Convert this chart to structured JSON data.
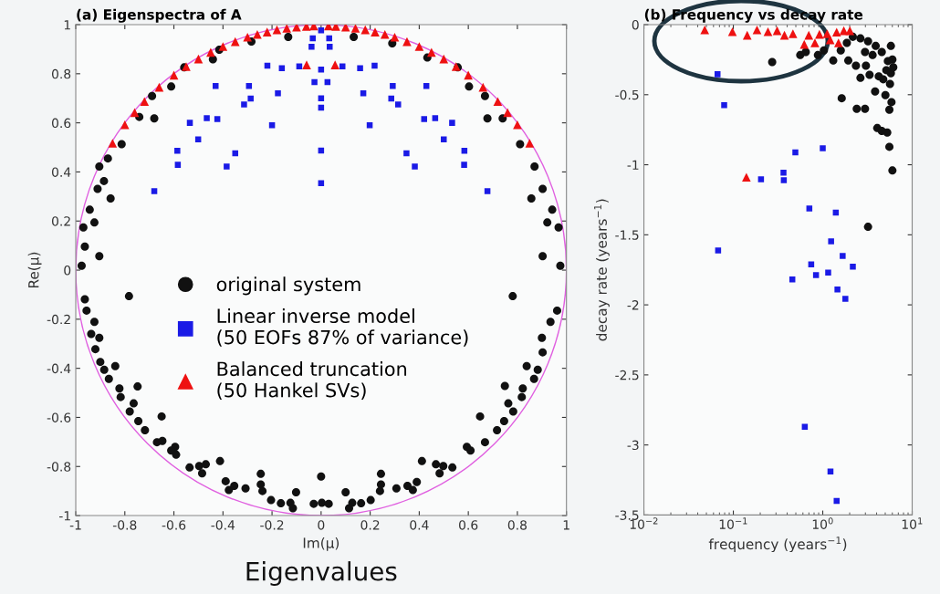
{
  "chart_data": [
    {
      "type": "scatter",
      "title": "(a) Eigenspectra of A",
      "xlabel": "Im(μ)",
      "ylabel": "Re(μ)",
      "xlim": [
        -1,
        1
      ],
      "ylim": [
        -1,
        1
      ],
      "xticks": [
        -1,
        -0.8,
        -0.6,
        -0.4,
        -0.2,
        0,
        0.2,
        0.4,
        0.6,
        0.8,
        1
      ],
      "yticks": [
        -1,
        -0.8,
        -0.6,
        -0.4,
        -0.2,
        0,
        0.2,
        0.4,
        0.6,
        0.8,
        1
      ],
      "grid": false,
      "legend": "center left",
      "annotations": [
        "Eigenvalues"
      ],
      "series": [
        {
          "name": "original system",
          "color": "#111111",
          "marker": "circle",
          "x": [
            -0.536,
            -0.497,
            -0.47,
            -0.485,
            -0.412,
            -0.389,
            -0.376,
            -0.354,
            -0.308,
            -0.246,
            -0.246,
            -0.239,
            -0.204,
            -0.164,
            -0.125,
            -0.115,
            -0.102,
            -0.03,
            0,
            0.003,
            0.031,
            0.1,
            0.114,
            0.127,
            0.163,
            0.202,
            0.244,
            0.244,
            0.24,
            0.307,
            0.352,
            0.374,
            0.39,
            0.411,
            0.468,
            0.498,
            0.483,
            0.535,
            -0.595,
            -0.611,
            -0.591,
            -0.669,
            -0.647,
            -0.65,
            -0.718,
            -0.745,
            -0.78,
            -0.764,
            -0.748,
            -0.817,
            -0.822,
            -0.865,
            -0.884,
            -0.839,
            -0.9,
            -0.92,
            -0.904,
            -0.937,
            -0.924,
            -0.956,
            -0.963,
            0.594,
            0.609,
            0.668,
            0.648,
            0.717,
            0.746,
            0.783,
            0.763,
            0.749,
            0.818,
            0.822,
            0.868,
            0.838,
            0.883,
            0.903,
            0.9,
            0.935,
            0.962,
            0.781,
            -0.783,
            -0.904,
            -0.969,
            -0.963,
            -0.976,
            -0.924,
            -0.858,
            -0.943,
            -0.911,
            -0.885,
            -0.904,
            -0.869,
            -0.813,
            -0.741,
            -0.68,
            -0.689,
            -0.611,
            -0.558,
            -0.441,
            -0.415,
            -0.284,
            -0.134,
            0.903,
            0.968,
            0.975,
            0.922,
            0.857,
            0.942,
            0.903,
            0.87,
            0.811,
            0.74,
            0.678,
            0.668,
            0.603,
            0.557,
            0.433,
            0.29,
            0.133
          ],
          "values": [
            -0.804,
            -0.798,
            -0.791,
            -0.828,
            -0.778,
            -0.86,
            -0.896,
            -0.879,
            -0.889,
            -0.83,
            -0.873,
            -0.9,
            -0.937,
            -0.95,
            -0.948,
            -0.97,
            -0.905,
            -0.952,
            -0.841,
            -0.948,
            -0.952,
            -0.905,
            -0.97,
            -0.948,
            -0.95,
            -0.937,
            -0.83,
            -0.873,
            -0.9,
            -0.889,
            -0.879,
            -0.896,
            -0.863,
            -0.778,
            -0.791,
            -0.798,
            -0.828,
            -0.804,
            -0.72,
            -0.735,
            -0.752,
            -0.701,
            -0.696,
            -0.596,
            -0.652,
            -0.615,
            -0.576,
            -0.543,
            -0.474,
            -0.517,
            -0.482,
            -0.443,
            -0.406,
            -0.391,
            -0.374,
            -0.322,
            -0.276,
            -0.26,
            -0.211,
            -0.165,
            -0.119,
            -0.72,
            -0.735,
            -0.701,
            -0.596,
            -0.652,
            -0.615,
            -0.576,
            -0.543,
            -0.472,
            -0.517,
            -0.482,
            -0.443,
            -0.391,
            -0.406,
            -0.335,
            -0.276,
            -0.211,
            -0.165,
            -0.106,
            -0.106,
            0.057,
            0.174,
            0.096,
            0.018,
            0.194,
            0.292,
            0.246,
            0.331,
            0.363,
            0.422,
            0.455,
            0.513,
            0.624,
            0.618,
            0.709,
            0.748,
            0.826,
            0.859,
            0.898,
            0.931,
            0.95,
            0.057,
            0.174,
            0.018,
            0.194,
            0.292,
            0.246,
            0.331,
            0.422,
            0.513,
            0.618,
            0.618,
            0.709,
            0.748,
            0.826,
            0.866,
            0.924,
            0.95
          ]
        },
        {
          "name": "Linear inverse model\n(50 EOFs 87% of variance)",
          "color": "#1a1ae6",
          "marker": "square",
          "x": [
            0,
            -0.034,
            0.033,
            -0.039,
            0.035,
            -0.219,
            -0.16,
            -0.089,
            0,
            0.087,
            0.159,
            0.218,
            -0.43,
            -0.294,
            -0.176,
            -0.027,
            0.026,
            0,
            0,
            -0.287,
            -0.314,
            0.172,
            0.292,
            0.429,
            0.286,
            0.314,
            -0.535,
            -0.466,
            -0.423,
            -0.2,
            0.198,
            0.42,
            0.465,
            0.534,
            -0.501,
            0.5,
            -0.586,
            -0.35,
            0,
            0.348,
            0.584,
            -0.584,
            -0.385,
            0.382,
            0.583,
            0,
            -0.68,
            0.678
          ],
          "values": [
            0.977,
            0.944,
            0.944,
            0.91,
            0.91,
            0.833,
            0.823,
            0.83,
            0.817,
            0.83,
            0.823,
            0.833,
            0.75,
            0.75,
            0.72,
            0.766,
            0.766,
            0.7,
            0.662,
            0.699,
            0.675,
            0.72,
            0.75,
            0.75,
            0.699,
            0.675,
            0.6,
            0.619,
            0.615,
            0.59,
            0.59,
            0.615,
            0.619,
            0.6,
            0.533,
            0.533,
            0.486,
            0.476,
            0.487,
            0.476,
            0.486,
            0.429,
            0.422,
            0.422,
            0.429,
            0.354,
            0.322,
            0.322
          ]
        },
        {
          "name": "Balanced truncation\n(50 Hankel SVs)",
          "color": "#ee1111",
          "marker": "triangle",
          "x": [
            -0.85,
            -0.8,
            -0.76,
            -0.72,
            -0.66,
            -0.6,
            -0.55,
            -0.5,
            -0.45,
            -0.4,
            -0.35,
            -0.3,
            -0.26,
            -0.22,
            -0.18,
            -0.14,
            -0.1,
            -0.06,
            -0.03,
            0.03,
            0.06,
            0.1,
            0.14,
            0.18,
            0.22,
            0.26,
            0.3,
            0.35,
            0.4,
            0.45,
            0.5,
            0.55,
            0.6,
            0.66,
            0.72,
            0.76,
            0.8,
            0.85,
            -0.059,
            0.057
          ],
          "values": [
            0.517,
            0.592,
            0.642,
            0.687,
            0.745,
            0.794,
            0.829,
            0.86,
            0.887,
            0.911,
            0.931,
            0.949,
            0.96,
            0.97,
            0.979,
            0.985,
            0.99,
            0.993,
            0.995,
            0.995,
            0.993,
            0.99,
            0.985,
            0.979,
            0.97,
            0.96,
            0.949,
            0.931,
            0.911,
            0.887,
            0.86,
            0.829,
            0.794,
            0.745,
            0.687,
            0.642,
            0.592,
            0.517,
            0.836,
            0.836
          ]
        }
      ]
    },
    {
      "type": "scatter",
      "title": "(b) Frequency vs decay rate",
      "xlabel": "frequency (years$^{−1}$)",
      "ylabel": "decay rate (years$^{−1}$)",
      "log": "x",
      "xlim": [
        0.01,
        10
      ],
      "ylim": [
        -3.5,
        0
      ],
      "xticks": [
        {
          "value": 0.01,
          "label": "10$^{−2}$"
        },
        {
          "value": 0.1,
          "label": "10$^{−1}$"
        },
        {
          "value": 1,
          "label": "10$^{0}$"
        },
        {
          "value": 10,
          "label": "10$^{1}$"
        }
      ],
      "yticks": [
        -3.5,
        -3,
        -2.5,
        -2,
        -1.5,
        -1,
        -0.5,
        0
      ],
      "grid": false,
      "series": [
        {
          "color": "#111111",
          "marker": "circle",
          "x": [
            0.272,
            0.56,
            0.883,
            1.31,
            1.63,
            1.93,
            2.35,
            2.64,
            3.04,
            2.4,
            2.97,
            3.85,
            3.34,
            3.21,
            4.07,
            4.57,
            5.26,
            5.56,
            6.01,
            5.56,
            5.87,
            5.02,
            5.65,
            5.78,
            5.78,
            6.01,
            4.23,
            4.57,
            3.91,
            3.21,
            2.64,
            2.17,
            1.86,
            1.59,
            5.14,
            6.15,
            4.75,
            5.35,
            3.61,
            2.97,
            0.646,
            1.03
          ],
          "values": [
            -0.267,
            -0.217,
            -0.217,
            -0.256,
            -0.525,
            -0.256,
            -0.293,
            -0.38,
            -0.293,
            -0.601,
            -0.601,
            -0.477,
            -0.358,
            -1.443,
            -0.738,
            -0.759,
            -0.77,
            -0.872,
            -1.041,
            -0.607,
            -0.553,
            -0.503,
            -0.423,
            -0.347,
            -0.152,
            -0.249,
            -0.369,
            -0.195,
            -0.152,
            -0.119,
            -0.098,
            -0.087,
            -0.13,
            -0.184,
            -0.325,
            -0.304,
            -0.39,
            -0.26,
            -0.217,
            -0.195,
            -0.195,
            -0.184
          ]
        },
        {
          "color": "#1a1ae6",
          "marker": "square",
          "x": [
            0.0666,
            0.079,
            0.0676,
            0.204,
            0.364,
            0.367,
            0.494,
            1.0,
            0.708,
            1.4,
            1.24,
            1.67,
            2.17,
            0.743,
            0.841,
            1.15,
            0.457,
            1.46,
            1.79,
            0.63,
            1.22,
            1.43
          ],
          "values": [
            -0.354,
            -0.575,
            -1.612,
            -1.104,
            -1.056,
            -1.111,
            -0.911,
            -0.883,
            -1.312,
            -1.341,
            -1.547,
            -1.651,
            -1.727,
            -1.711,
            -1.787,
            -1.77,
            -1.818,
            -1.89,
            -1.957,
            -2.87,
            -3.19,
            -3.4
          ]
        },
        {
          "color": "#ee1111",
          "marker": "triangle",
          "x": [
            0.0479,
            0.0977,
            0.143,
            0.184,
            0.244,
            0.309,
            0.373,
            0.464,
            0.621,
            0.698,
            0.817,
            0.918,
            1.12,
            1.21,
            1.5,
            1.43,
            1.72,
            2.01,
            0.14
          ],
          "values": [
            -0.037,
            -0.05,
            -0.076,
            -0.037,
            -0.05,
            -0.043,
            -0.076,
            -0.065,
            -0.141,
            -0.076,
            -0.13,
            -0.069,
            -0.065,
            -0.108,
            -0.13,
            -0.054,
            -0.043,
            -0.043,
            -1.089
          ]
        }
      ]
    }
  ]
}
